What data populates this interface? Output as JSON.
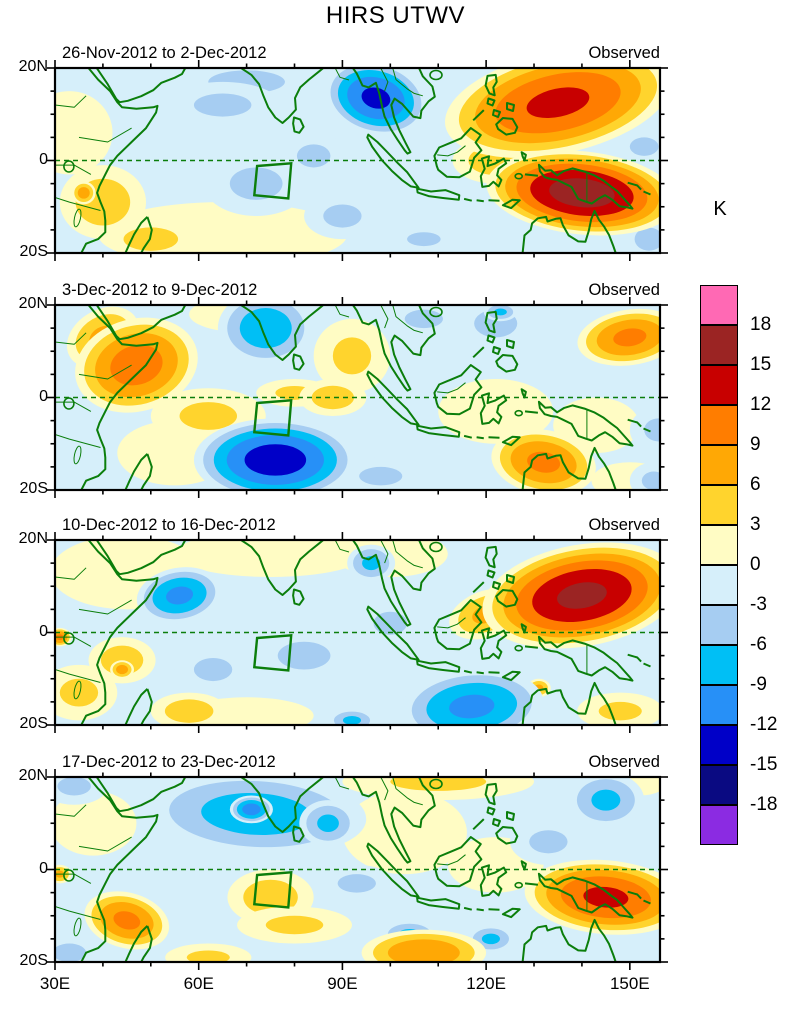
{
  "title": "HIRS UTWV",
  "unit_label": "K",
  "panels": [
    {
      "title": "26-Nov-2012 to 2-Dec-2012",
      "tag": "Observed"
    },
    {
      "title": "3-Dec-2012 to 9-Dec-2012",
      "tag": "Observed"
    },
    {
      "title": "10-Dec-2012 to 16-Dec-2012",
      "tag": "Observed"
    },
    {
      "title": "17-Dec-2012 to 23-Dec-2012",
      "tag": "Observed"
    }
  ],
  "axes": {
    "x_ticks": [
      {
        "label": "30E",
        "lon": 30
      },
      {
        "label": "60E",
        "lon": 60
      },
      {
        "label": "90E",
        "lon": 90
      },
      {
        "label": "120E",
        "lon": 120
      },
      {
        "label": "150E",
        "lon": 150
      }
    ],
    "y_ticks": [
      {
        "label": "20N",
        "lat": 20
      },
      {
        "label": "0",
        "lat": 0
      },
      {
        "label": "20S",
        "lat": -20
      }
    ]
  },
  "colorbar": {
    "unit": "K",
    "tick_labels": [
      "18",
      "15",
      "12",
      "9",
      "6",
      "3",
      "0",
      "-3",
      "-6",
      "-9",
      "-12",
      "-15",
      "-18"
    ],
    "colors_top_to_bottom": [
      "#FF69B4",
      "#9B2423",
      "#C80000",
      "#FF7D00",
      "#FFA805",
      "#FFD42D",
      "#FFFCC4",
      "#D6EFFA",
      "#A6CDF2",
      "#00BFF5",
      "#2790F7",
      "#0000C8",
      "#0A0A82",
      "#8B2BE2"
    ],
    "coast_color": "#0B7E0B"
  },
  "chart_data": {
    "type": "heatmap",
    "subtype": "filled-contour-anomaly-maps",
    "title": "HIRS UTWV",
    "unit": "K",
    "contour_interval": 3,
    "levels": [
      -18,
      -15,
      -12,
      -9,
      -6,
      -3,
      0,
      3,
      6,
      9,
      12,
      15,
      18
    ],
    "lon_range": [
      30,
      156.3
    ],
    "lat_range": [
      -20,
      20
    ],
    "grid": false,
    "legend_position": "right",
    "study_region_lonlat": [
      [
        72.2,
        -1.2
      ],
      [
        79.3,
        -0.6
      ],
      [
        78.7,
        -8.2
      ],
      [
        71.6,
        -7.5
      ]
    ],
    "anomaly_format": "[lon_deg_E, lat_deg_N, rx_deg, ry_deg, peak_K, rotation_deg]",
    "panels": [
      {
        "period": "26-Nov-2012 to 2-Dec-2012",
        "source": "Observed",
        "anomalies": [
          [
            33,
            6,
            9,
            9,
            1,
            0
          ],
          [
            65,
            -16,
            26,
            7,
            1,
            0
          ],
          [
            40,
            -9,
            9,
            8,
            5,
            0
          ],
          [
            50,
            -17,
            9,
            4,
            5,
            0
          ],
          [
            36,
            -7,
            2.5,
            2.5,
            8,
            0
          ],
          [
            70,
            17,
            16,
            5,
            -4,
            0
          ],
          [
            65,
            12,
            12,
            5,
            -4,
            0
          ],
          [
            84,
            1,
            7,
            5,
            -4,
            0
          ],
          [
            72,
            -5,
            11,
            7,
            -4,
            0
          ],
          [
            90,
            -12,
            8,
            5,
            -4,
            0
          ],
          [
            107,
            -17,
            7,
            3,
            -4,
            0
          ],
          [
            154,
            -17,
            6,
            5,
            -4,
            0
          ],
          [
            152,
            17,
            7,
            5,
            -5,
            0
          ],
          [
            153,
            3,
            6,
            4,
            -4,
            0
          ],
          [
            122,
            0,
            9,
            5,
            5,
            0
          ],
          [
            135,
            12.5,
            24,
            11,
            13,
            -12
          ],
          [
            140,
            -7,
            20,
            9,
            17,
            6
          ],
          [
            97,
            13.5,
            11,
            8,
            -13,
            15
          ]
        ]
      },
      {
        "period": "3-Dec-2012 to 9-Dec-2012",
        "source": "Observed",
        "anomalies": [
          [
            70,
            18,
            12,
            4,
            1,
            0
          ],
          [
            55,
            -12,
            12,
            7,
            1,
            0
          ],
          [
            122,
            -3,
            12,
            7,
            1,
            0
          ],
          [
            143,
            -6,
            9,
            6,
            1,
            0
          ],
          [
            150,
            -18,
            8,
            4,
            1,
            0
          ],
          [
            107,
            17,
            8,
            4,
            -4,
            0
          ],
          [
            122,
            16,
            9,
            6,
            -4,
            0
          ],
          [
            123,
            18.5,
            3.5,
            2,
            -7,
            0
          ],
          [
            156,
            -7,
            6,
            5,
            -4,
            0
          ],
          [
            98,
            -17,
            9,
            4,
            -4,
            0
          ],
          [
            155,
            -18,
            5,
            4,
            -4,
            0
          ],
          [
            62,
            -4,
            12,
            6,
            4,
            0
          ],
          [
            80,
            1,
            8,
            3,
            4,
            0
          ],
          [
            92,
            9,
            8,
            8,
            4,
            0
          ],
          [
            88,
            0,
            7,
            4,
            5,
            0
          ],
          [
            40,
            13,
            8,
            6,
            7,
            -30
          ],
          [
            47,
            7,
            13,
            10,
            11,
            -15
          ],
          [
            150,
            13,
            11,
            6,
            10,
            -8
          ],
          [
            132,
            -14,
            11,
            7,
            10,
            10
          ],
          [
            74,
            15,
            10,
            8,
            -8.5,
            0
          ],
          [
            76,
            -13.5,
            17,
            9,
            -14,
            0
          ]
        ]
      },
      {
        "period": "10-Dec-2012 to 16-Dec-2012",
        "source": "Observed",
        "anomalies": [
          [
            45,
            13,
            16,
            8,
            1,
            0
          ],
          [
            75,
            17,
            20,
            5,
            1,
            0
          ],
          [
            100,
            17,
            12,
            5,
            1,
            0
          ],
          [
            70,
            -18,
            14,
            4,
            1,
            0
          ],
          [
            148,
            -17,
            9,
            4,
            4,
            0
          ],
          [
            131,
            -12,
            2.5,
            2,
            7,
            0
          ],
          [
            35,
            -13,
            8,
            6,
            4,
            0
          ],
          [
            58,
            -17,
            8,
            4,
            5,
            0
          ],
          [
            44,
            -6,
            7,
            5,
            5,
            0
          ],
          [
            44,
            -8,
            2.5,
            2,
            8,
            0
          ],
          [
            31,
            -1,
            2.5,
            2,
            10,
            0
          ],
          [
            63,
            -8,
            8,
            5,
            -4,
            0
          ],
          [
            82,
            -5,
            11,
            6,
            -4,
            0
          ],
          [
            100,
            2,
            7,
            5,
            -4,
            0
          ],
          [
            96,
            15,
            5,
            4,
            -7,
            0
          ],
          [
            92,
            -19,
            5,
            2.5,
            -7,
            0
          ],
          [
            117,
            -16,
            15,
            8,
            -10,
            -5
          ],
          [
            56,
            8,
            9,
            6,
            -10,
            -10
          ],
          [
            120,
            4,
            8,
            5,
            7,
            -20
          ],
          [
            140,
            8,
            21,
            11,
            16,
            -10
          ]
        ]
      },
      {
        "period": "17-Dec-2012 to 23-Dec-2012",
        "source": "Observed",
        "anomalies": [
          [
            38,
            10,
            9,
            7,
            1,
            0
          ],
          [
            103,
            8,
            13,
            9,
            1,
            0
          ],
          [
            122,
            1,
            10,
            6,
            1,
            0
          ],
          [
            152,
            19,
            6,
            3,
            1,
            0
          ],
          [
            110,
            19,
            20,
            4,
            4,
            0
          ],
          [
            34,
            18,
            7,
            4,
            -4,
            0
          ],
          [
            33,
            -18,
            7,
            4,
            -4,
            0
          ],
          [
            133,
            6,
            8,
            5,
            -4,
            0
          ],
          [
            93,
            -3,
            8,
            4,
            -4,
            0
          ],
          [
            104,
            -14,
            6,
            3,
            -7,
            0
          ],
          [
            121,
            -15,
            5,
            3,
            -7,
            0
          ],
          [
            145,
            15,
            8,
            6,
            -7,
            0
          ],
          [
            75,
            -6,
            9,
            6,
            5,
            0
          ],
          [
            80,
            -12,
            12,
            4,
            4,
            0
          ],
          [
            62,
            -19,
            9,
            3,
            4,
            0
          ],
          [
            45,
            -11,
            9,
            6,
            10,
            15
          ],
          [
            107,
            -18,
            13,
            5,
            9,
            0
          ],
          [
            31,
            -1,
            2.5,
            2,
            7,
            0
          ],
          [
            145,
            -6,
            17,
            8,
            13,
            5
          ],
          [
            72,
            12,
            23,
            9,
            -8,
            3
          ],
          [
            87,
            10,
            6,
            5,
            -7,
            0
          ],
          [
            71,
            13,
            4.5,
            3,
            -11,
            0
          ]
        ]
      }
    ]
  }
}
